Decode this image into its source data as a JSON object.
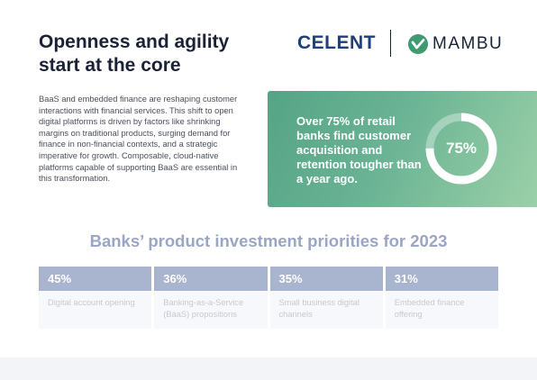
{
  "header": {
    "title_lines": [
      "Openness and agility",
      "start at the core"
    ],
    "logos": {
      "celent": "CELENT",
      "mambu": "MAMBU",
      "mambu_icon": "mambu-check-icon"
    }
  },
  "intro": {
    "text": "BaaS and embedded finance are reshaping customer interactions with financial services. This shift to open digital platforms is driven by factors like shrinking margins on traditional products, surging demand for finance in non-financial contexts, and a strategic imperative for growth. Composable, cloud-native platforms capable of supporting BaaS are essential in this transformation."
  },
  "stat": {
    "text": "Over 75% of retail banks find customer acquisition and retention tougher than a year ago.",
    "value_label": "75%",
    "value": 75
  },
  "priorities": {
    "title": "Banks’ product investment priorities for 2023",
    "items": [
      {
        "pct": "45%",
        "label": "Digital account opening"
      },
      {
        "pct": "36%",
        "label": "Banking-as-a-Service (BaaS) propositions"
      },
      {
        "pct": "35%",
        "label": "Small business digital channels"
      },
      {
        "pct": "31%",
        "label": "Embedded finance offering"
      }
    ]
  },
  "colors": {
    "title": "#1b2235",
    "celent": "#1f3f7a",
    "mambu_green": "#3f9a72",
    "card_gradient_start": "#55a486",
    "card_gradient_end": "#9bd0a8",
    "priority_header": "#a9b4cf"
  }
}
